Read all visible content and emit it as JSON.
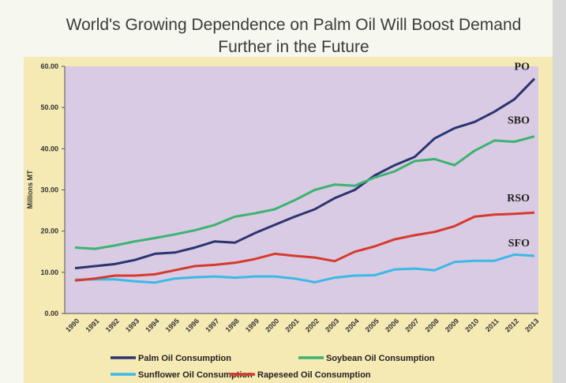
{
  "slide": {
    "title_line1": "World's Growing Dependence on Palm Oil Will Boost Demand",
    "title_line2": "Further in the Future"
  },
  "colors": {
    "plot_bg": "#d9cbe3",
    "frame": "#f5e9b4",
    "palm": "#2a3470",
    "soybean": "#3cb371",
    "sunflower": "#3cb9e6",
    "rapeseed": "#d63a2e"
  },
  "chart_data": {
    "type": "line",
    "title": "World's Growing Dependence on Palm Oil Will Boost Demand Further in the Future",
    "ylabel": "Millions MT",
    "xlabel": "",
    "ylim": [
      0,
      60
    ],
    "y_ticks": [
      "0.00",
      "10.00",
      "20.00",
      "30.00",
      "40.00",
      "50.00",
      "60.00"
    ],
    "grid": false,
    "legend_placement": "bottom",
    "categories": [
      "1990",
      "1991",
      "1992",
      "1993",
      "1994",
      "1995",
      "1996",
      "1997",
      "1998",
      "1999",
      "2000",
      "2001",
      "2002",
      "2003",
      "2004",
      "2005",
      "2006",
      "2007",
      "2008",
      "2009",
      "2010",
      "2011",
      "2012",
      "2013"
    ],
    "series": [
      {
        "name": "Palm Oil Consumption",
        "label": "PO",
        "color": "#2a3470",
        "values": [
          11.0,
          11.5,
          12.0,
          13.0,
          14.5,
          14.8,
          16.0,
          17.5,
          17.2,
          19.5,
          21.5,
          23.5,
          25.3,
          28.0,
          30.0,
          33.5,
          36.0,
          38.0,
          42.5,
          45.0,
          46.5,
          49.0,
          52.0,
          57.0
        ]
      },
      {
        "name": "Soybean Oil Consumption",
        "label": "SBO",
        "color": "#3cb371",
        "values": [
          16.0,
          15.7,
          16.5,
          17.5,
          18.3,
          19.2,
          20.2,
          21.5,
          23.5,
          24.3,
          25.3,
          27.5,
          30.0,
          31.3,
          31.0,
          33.0,
          34.5,
          37.0,
          37.5,
          36.0,
          39.5,
          42.0,
          41.7,
          43.0
        ]
      },
      {
        "name": "Sunflower Oil Consumption",
        "label": "SFO",
        "color": "#3cb9e6",
        "values": [
          8.2,
          8.3,
          8.3,
          7.8,
          7.5,
          8.5,
          8.8,
          9.0,
          8.7,
          9.0,
          9.0,
          8.5,
          7.6,
          8.7,
          9.2,
          9.3,
          10.7,
          10.9,
          10.5,
          12.5,
          12.8,
          12.8,
          14.3,
          14.0
        ]
      },
      {
        "name": "Rapeseed Oil Consumption",
        "label": "RSO",
        "color": "#d63a2e",
        "values": [
          8.0,
          8.5,
          9.2,
          9.2,
          9.5,
          10.5,
          11.5,
          11.8,
          12.3,
          13.2,
          14.5,
          14.0,
          13.6,
          12.7,
          15.0,
          16.3,
          18.0,
          19.0,
          19.8,
          21.2,
          23.5,
          24.0,
          24.2,
          24.5
        ]
      }
    ]
  }
}
